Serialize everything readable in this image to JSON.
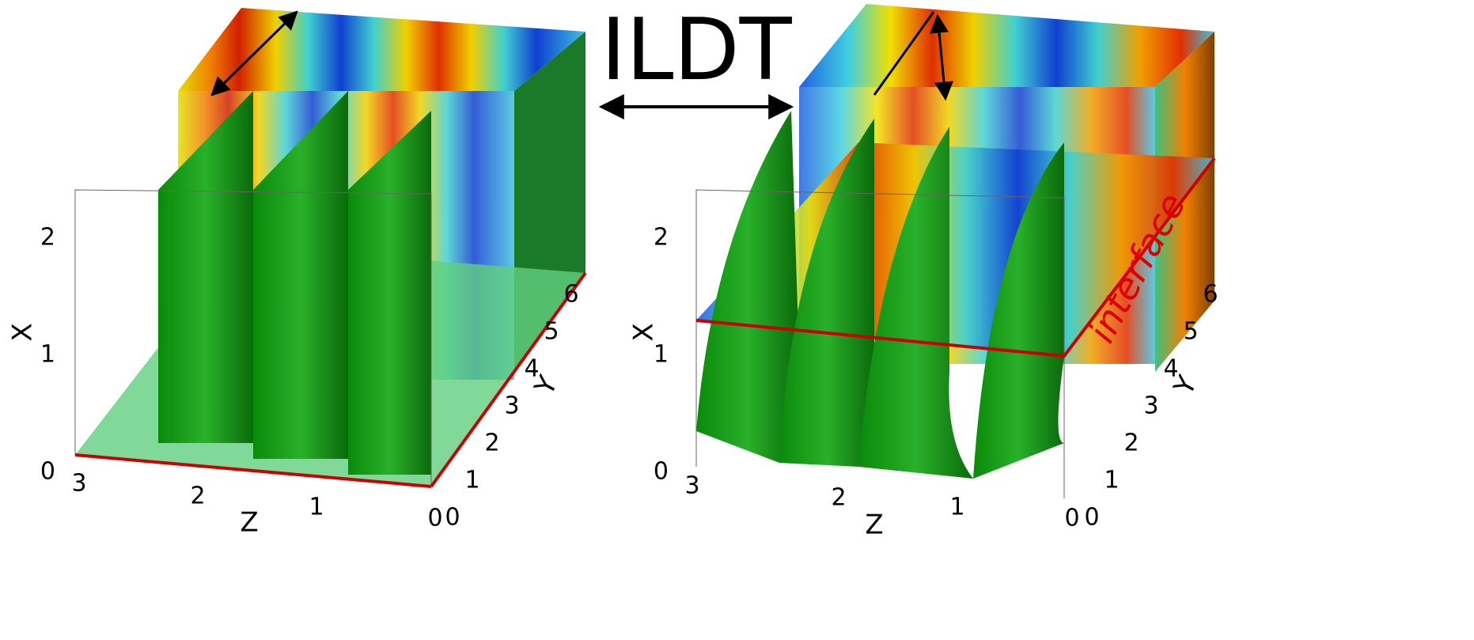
{
  "header": {
    "title": "ILDT"
  },
  "annotation": "interface",
  "panels": [
    {
      "x_label": "X",
      "y_label": "Y",
      "z_label": "Z",
      "x_ticks": [
        0,
        1,
        2
      ],
      "y_ticks": [
        0,
        1,
        2,
        3,
        4,
        5,
        6
      ],
      "z_ticks": [
        3,
        2,
        1,
        0
      ]
    },
    {
      "x_label": "X",
      "y_label": "Y",
      "z_label": "Z",
      "x_ticks": [
        0,
        1,
        2
      ],
      "y_ticks": [
        0,
        1,
        2,
        3,
        4,
        5,
        6
      ],
      "z_ticks": [
        3,
        2,
        1,
        0
      ]
    }
  ]
}
